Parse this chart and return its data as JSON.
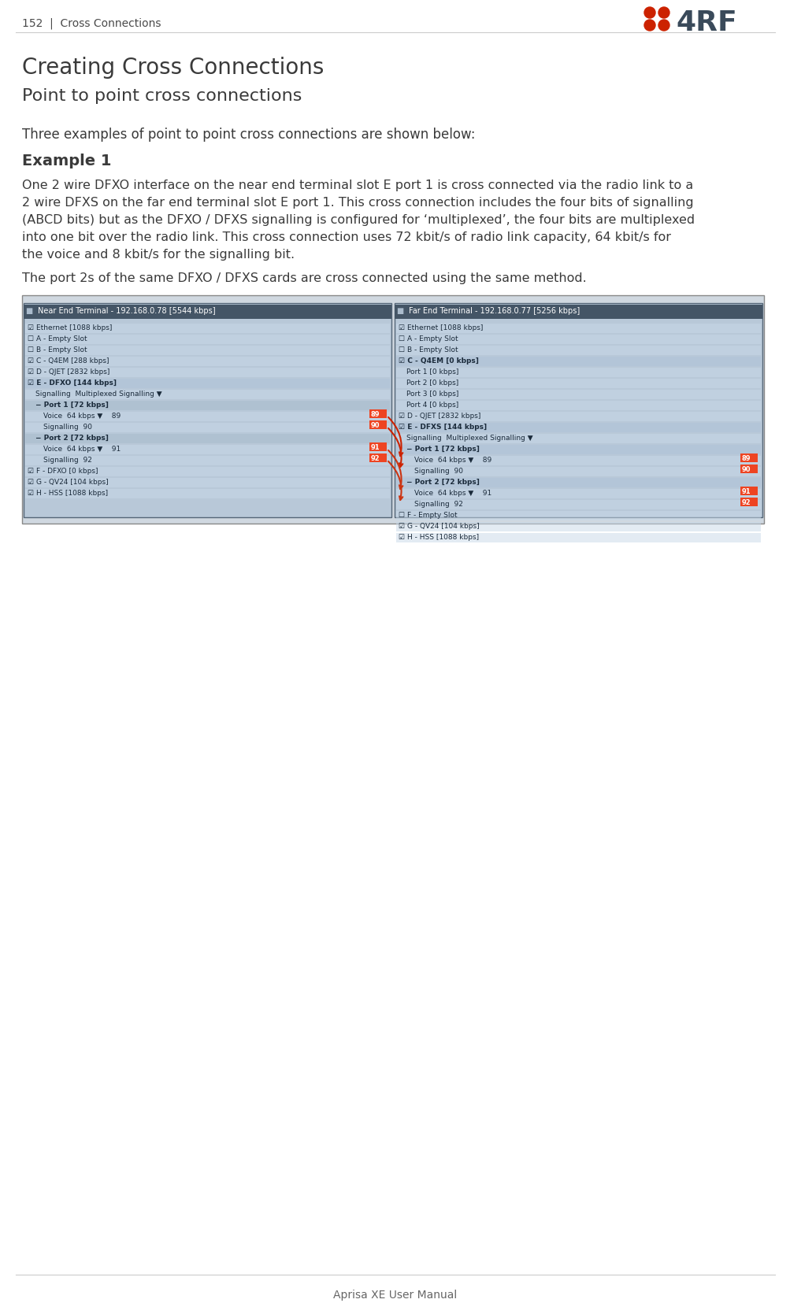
{
  "page_number": "152",
  "header_text": "152  |  Cross Connections",
  "logo_text": "4RF",
  "title": "Creating Cross Connections",
  "subtitle": "Point to point cross connections",
  "body_paragraph1": "Three examples of point to point cross connections are shown below:",
  "example_label": "Example 1",
  "body_paragraph2": "One 2 wire DFXO interface on the near end terminal slot E port 1 is cross connected via the radio link to a 2 wire DFXS on the far end terminal slot E port 1. This cross connection includes the four bits of signalling (ABCD bits) but as the DFXO / DFXS signalling is configured for ‘multiplexed’, the four bits are multiplexed into one bit over the radio link. This cross connection uses 72 kbit/s of radio link capacity, 64 kbit/s for the voice and 8 kbit/s for the signalling bit.",
  "body_paragraph3": "The port 2s of the same DFXO / DFXS cards are cross connected using the same method.",
  "footer_text": "Aprisa XE User Manual",
  "bg_color": "#ffffff",
  "header_color": "#4a4a4a",
  "title_color": "#3a3a3a",
  "subtitle_color": "#3a3a3a",
  "body_color": "#3a3a3a",
  "separator_color": "#cccccc",
  "footer_color": "#666666",
  "logo_red": "#cc2200",
  "logo_dark": "#3a4a5a",
  "image_placeholder": true,
  "near_end_title": "Near End Terminal - 192.168.0.78 [5544 kbps]",
  "far_end_title": "Far End Terminal - 192.168.0.77 [5256 kbps]",
  "near_end_items": [
    "Ethernet [1088 kbps]",
    "A - Empty Slot",
    "B - Empty Slot",
    "C - Q4EM [288 kbps]",
    "D - QJET [2832 kbps]",
    "E - DFXO [144 kbps]",
    "  Signalling  Multiplexed Signalling",
    "  Port 1 [72 kbps]",
    "    Voice  64 kbps       89",
    "    Signalling  90",
    "  Port 2 [72 kbps]",
    "    Voice  64 kbps       91",
    "    Signalling  92",
    "F - DFXO [0 kbps]",
    "G - QV24 [104 kbps]",
    "H - HSS [1088 kbps]"
  ],
  "far_end_items": [
    "Ethernet [1088 kbps]",
    "A - Empty Slot",
    "B - Empty Slot",
    "C - Q4EM [0 kbps]",
    "  Port 1 [0 kbps]",
    "  Port 2 [0 kbps]",
    "  Port 3 [0 kbps]",
    "  Port 4 [0 kbps]",
    "D - QJET [2832 kbps]",
    "E - DFXS [144 kbps]",
    "  Signalling  Multiplexed Signalling",
    "  Port 1 [72 kbps]",
    "    Voice  64 kbps       89",
    "    Signalling  90",
    "  Port 2 [72 kbps]",
    "    Voice  64 kbps       91",
    "    Signalling  92",
    "F - Empty Slot",
    "G - QV24 [104 kbps]",
    "H - HSS [1088 kbps]"
  ]
}
